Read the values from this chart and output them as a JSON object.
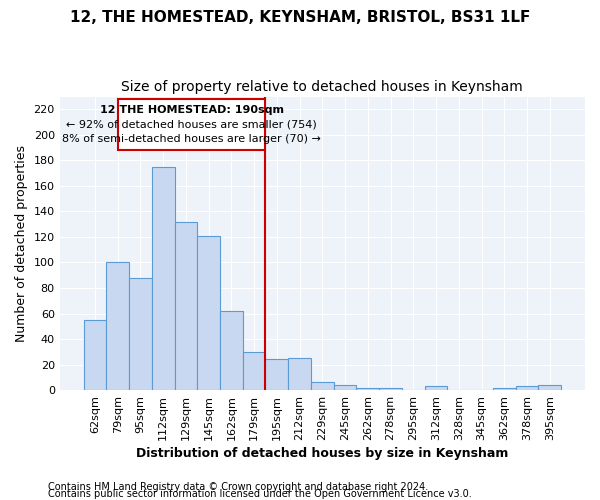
{
  "title1": "12, THE HOMESTEAD, KEYNSHAM, BRISTOL, BS31 1LF",
  "title2": "Size of property relative to detached houses in Keynsham",
  "xlabel": "Distribution of detached houses by size in Keynsham",
  "ylabel": "Number of detached properties",
  "footnote1": "Contains HM Land Registry data © Crown copyright and database right 2024.",
  "footnote2": "Contains public sector information licensed under the Open Government Licence v3.0.",
  "bar_labels": [
    "62sqm",
    "79sqm",
    "95sqm",
    "112sqm",
    "129sqm",
    "145sqm",
    "162sqm",
    "179sqm",
    "195sqm",
    "212sqm",
    "229sqm",
    "245sqm",
    "262sqm",
    "278sqm",
    "295sqm",
    "312sqm",
    "328sqm",
    "345sqm",
    "362sqm",
    "378sqm",
    "395sqm"
  ],
  "bar_values": [
    55,
    100,
    88,
    175,
    132,
    121,
    62,
    30,
    24,
    25,
    6,
    4,
    2,
    2,
    0,
    3,
    0,
    0,
    2,
    3,
    4
  ],
  "bar_color": "#c8d8f0",
  "bar_edge_color": "#5b9bd5",
  "vline_color": "#cc0000",
  "annotation_title": "12 THE HOMESTEAD: 190sqm",
  "annotation_line1": "← 92% of detached houses are smaller (754)",
  "annotation_line2": "8% of semi-detached houses are larger (70) →",
  "annotation_box_color": "#cc0000",
  "annotation_bg": "#ffffff",
  "ylim": [
    0,
    230
  ],
  "background_color": "#f0f4fb",
  "plot_bg_color": "#eef3fa",
  "grid_color": "#ffffff",
  "title1_fontsize": 11,
  "title2_fontsize": 10,
  "xlabel_fontsize": 9,
  "ylabel_fontsize": 9,
  "footnote_fontsize": 7
}
